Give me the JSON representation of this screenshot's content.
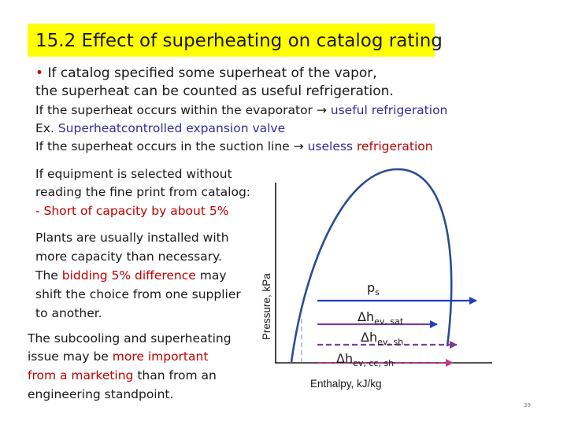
{
  "slide": {
    "title": "15.2 Effect of superheating on catalog rating",
    "bullet_marker": "•",
    "bullet_line1": "If catalog specified some superheat of the vapor,",
    "bullet_line2": "the superheat can be counted as useful refrigeration.",
    "evap_prefix": "If the superheat occurs within the evaporator ",
    "arrow": "→",
    "evap_result": " useful refrigeration",
    "ex_prefix": "Ex. ",
    "ex_text": "Superheatcontrolled expansion valve",
    "suction_prefix": "If the superheat occurs in the suction line ",
    "suction_useless": " useless ",
    "suction_refrig": "refrigeration",
    "fineprint_line1": "If equipment is selected without",
    "fineprint_line2": "reading the fine print from catalog:",
    "fineprint_line3": "- Short of capacity by about 5%",
    "plants_line1": "Plants are usually installed with",
    "plants_line2": "more capacity than necessary.",
    "plants_line3_pre": "The ",
    "plants_line3_red": "bidding 5% difference",
    "plants_line3_post": " may",
    "plants_line4": "shift the choice from one supplier",
    "plants_line5": "to another.",
    "sub_line1": "The subcooling and superheating",
    "sub_line2_pre": "issue may be ",
    "sub_line2_red": "more important",
    "sub_line3_red": "from a marketing",
    "sub_line3_post": " than from an",
    "sub_line4": "engineering standpoint.",
    "page_number": "39"
  },
  "diagram": {
    "y_axis_label": "Pressure, kPa",
    "x_axis_label": "Enthalpy, kJ/kg",
    "pressure_symbol": "p",
    "pressure_sub": "s",
    "delta": "Δ",
    "h": "h",
    "sat_sub": "ev, sat",
    "sh_sub": "ev, sh",
    "cc_sub": "ev, cc, sh",
    "colors": {
      "dome": "#2b4d91",
      "sat_line": "#1f3fbf",
      "sh_line": "#7d3c98",
      "cc_line": "#c0398a",
      "dashed_vertical": "#9bb0de"
    }
  }
}
